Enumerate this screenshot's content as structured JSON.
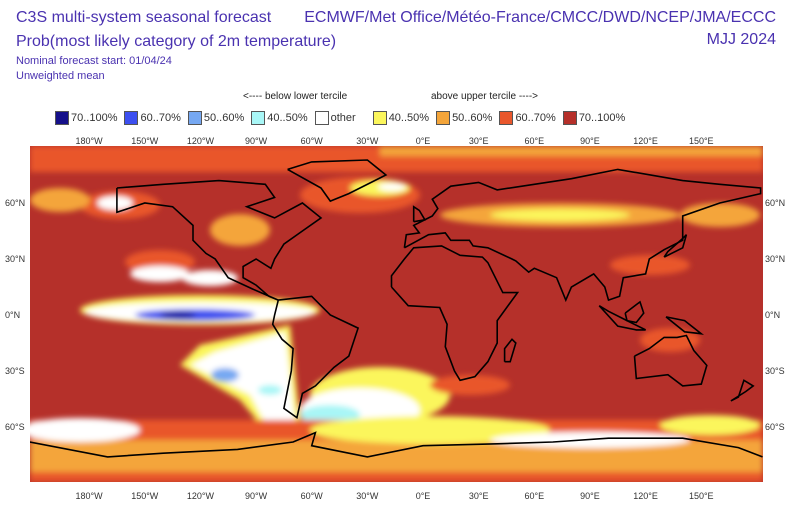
{
  "header": {
    "title": "C3S multi-system seasonal forecast",
    "subtitle": "Prob(most likely category of 2m temperature)",
    "forecast_start": "Nominal forecast start: 01/04/24",
    "mean_type": "Unweighted mean",
    "centres": "ECMWF/Met Office/Météo-France/CMCC/DWD/NCEP/JMA/ECCC",
    "period": "MJJ 2024"
  },
  "legend": {
    "below_label": "<---- below lower tercile",
    "above_label": "above upper tercile ---->",
    "items": [
      {
        "label": "70..100%",
        "color": "#15108a"
      },
      {
        "label": "60..70%",
        "color": "#3c4ff0"
      },
      {
        "label": "50..60%",
        "color": "#76a8f2"
      },
      {
        "label": "40..50%",
        "color": "#a8f6f6"
      },
      {
        "label": "other",
        "color": "#ffffff"
      },
      {
        "label": "40..50%",
        "color": "#fbf65c"
      },
      {
        "label": "50..60%",
        "color": "#f4a53a"
      },
      {
        "label": "60..70%",
        "color": "#e9572c"
      },
      {
        "label": "70..100%",
        "color": "#b5302a"
      }
    ]
  },
  "axes": {
    "lon": [
      "180°W",
      "150°W",
      "120°W",
      "90°W",
      "60°W",
      "30°W",
      "0°E",
      "30°E",
      "60°E",
      "90°E",
      "120°E",
      "150°E"
    ],
    "lat": [
      "60°N",
      "30°N",
      "0°N",
      "30°S",
      "60°S"
    ]
  }
}
